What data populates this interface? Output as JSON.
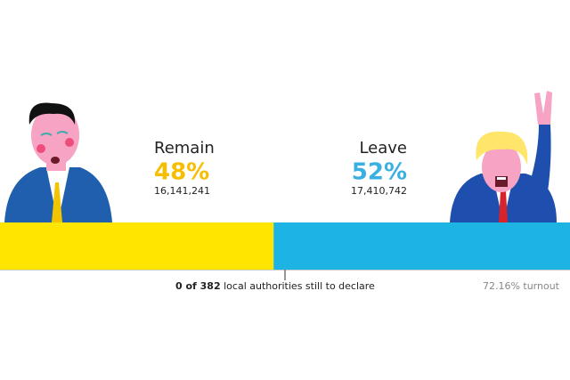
{
  "chart_data": {
    "type": "bar",
    "series": [
      {
        "name": "Remain",
        "color": "#ffe500",
        "label_color": "#f5bf00",
        "values": [
          48
        ],
        "value_labels": [
          "48%"
        ],
        "votes": [
          "16,141,241"
        ]
      },
      {
        "name": "Leave",
        "color": "#1db4e4",
        "label_color": "#3ab0e2",
        "values": [
          52
        ],
        "value_labels": [
          "52%"
        ],
        "votes": [
          "17,410,742"
        ]
      }
    ],
    "xlim": [
      0,
      100
    ],
    "declared": "0 of 382",
    "declared_note": "local authorities still to declare",
    "turnout": "72.16% turnout"
  }
}
